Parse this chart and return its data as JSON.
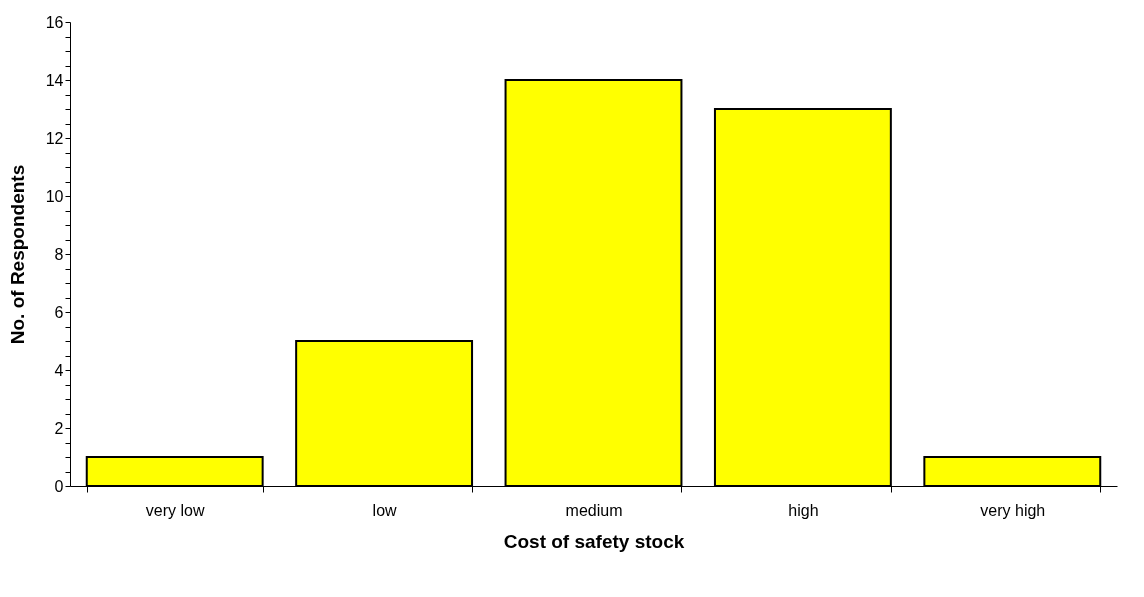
{
  "chart_data": {
    "type": "bar",
    "xlabel": "Cost of safety stock",
    "ylabel": "No. of Respondents",
    "categories": [
      "very low",
      "low",
      "medium",
      "high",
      "very high"
    ],
    "values": [
      1,
      5,
      14,
      13,
      1
    ],
    "color": "#ffff00",
    "ylim": [
      0,
      16
    ],
    "yticks": [
      0,
      {
        "value": 0.5,
        "label": null
      },
      {
        "value": 1,
        "label": null
      },
      {
        "value": 1.5,
        "label": null
      },
      2,
      {
        "value": 2.5,
        "label": null
      },
      {
        "value": 3,
        "label": null
      },
      {
        "value": 3.5,
        "label": null
      },
      4,
      {
        "value": 4.5,
        "label": null
      },
      {
        "value": 5,
        "label": null
      },
      {
        "value": 5.5,
        "label": null
      },
      6,
      {
        "value": 6.5,
        "label": null
      },
      {
        "value": 7,
        "label": null
      },
      {
        "value": 7.5,
        "label": null
      },
      8,
      {
        "value": 8.5,
        "label": null
      },
      {
        "value": 9,
        "label": null
      },
      {
        "value": 9.5,
        "label": null
      },
      10,
      {
        "value": 10.5,
        "label": null
      },
      {
        "value": 11,
        "label": null
      },
      {
        "value": 11.5,
        "label": null
      },
      12,
      {
        "value": 12.5,
        "label": null
      },
      {
        "value": 13,
        "label": null
      },
      {
        "value": 13.5,
        "label": null
      },
      14,
      {
        "value": 14.5,
        "label": null
      },
      {
        "value": 15,
        "label": null
      },
      {
        "value": 15.5,
        "label": null
      },
      16
    ],
    "grid": false
  }
}
